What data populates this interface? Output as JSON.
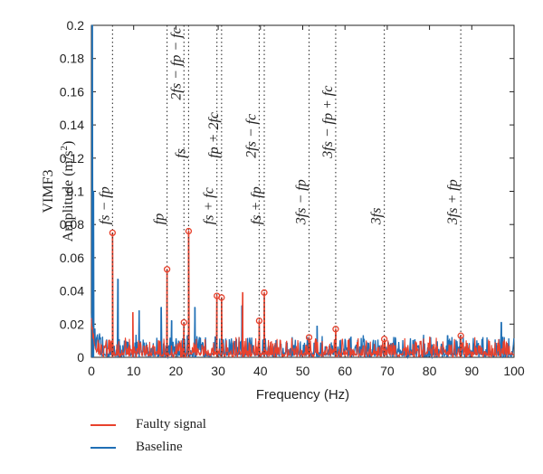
{
  "chart_data": {
    "type": "line",
    "xlabel": "Frequency (Hz)",
    "ylabel_line1": "VIMF3",
    "ylabel_line2": "Amplitude (m/s",
    "ylabel_sup": "2",
    "ylabel_tail": ")",
    "xlim": [
      0,
      100
    ],
    "ylim": [
      0,
      0.2
    ],
    "xticks": [
      "0",
      "10",
      "20",
      "30",
      "40",
      "50",
      "60",
      "70",
      "80",
      "90",
      "100"
    ],
    "yticks": [
      "0",
      "0.02",
      "0.04",
      "0.06",
      "0.08",
      "0.1",
      "0.12",
      "0.14",
      "0.16",
      "0.18",
      "0.2"
    ],
    "grid": false,
    "legend_position": "bottom-left (below plot)",
    "series": [
      {
        "name": "Faulty signal",
        "color": "#e8412c",
        "peaks": [
          {
            "x": 5.0,
            "y": 0.075
          },
          {
            "x": 9.8,
            "y": 0.027
          },
          {
            "x": 17.9,
            "y": 0.053
          },
          {
            "x": 21.9,
            "y": 0.021
          },
          {
            "x": 23.0,
            "y": 0.076
          },
          {
            "x": 29.7,
            "y": 0.037
          },
          {
            "x": 30.8,
            "y": 0.036
          },
          {
            "x": 35.8,
            "y": 0.039
          },
          {
            "x": 39.7,
            "y": 0.022
          },
          {
            "x": 40.9,
            "y": 0.039
          },
          {
            "x": 51.5,
            "y": 0.012
          },
          {
            "x": 57.8,
            "y": 0.017
          },
          {
            "x": 69.3,
            "y": 0.011
          },
          {
            "x": 87.4,
            "y": 0.013
          }
        ]
      },
      {
        "name": "Baseline",
        "color": "#1f6fb5",
        "peaks": [
          {
            "x": 0.2,
            "y": 0.2
          },
          {
            "x": 0.5,
            "y": 0.1
          },
          {
            "x": 6.3,
            "y": 0.047
          },
          {
            "x": 11.3,
            "y": 0.028
          },
          {
            "x": 16.5,
            "y": 0.03
          },
          {
            "x": 19.0,
            "y": 0.022
          },
          {
            "x": 24.5,
            "y": 0.03
          },
          {
            "x": 35.6,
            "y": 0.031
          },
          {
            "x": 53.4,
            "y": 0.019
          },
          {
            "x": 84.3,
            "y": 0.013
          },
          {
            "x": 97.0,
            "y": 0.021
          }
        ]
      }
    ],
    "markers": [
      {
        "x": 5.0,
        "y": 0.075
      },
      {
        "x": 17.9,
        "y": 0.053
      },
      {
        "x": 21.9,
        "y": 0.021
      },
      {
        "x": 23.0,
        "y": 0.076
      },
      {
        "x": 29.7,
        "y": 0.037
      },
      {
        "x": 30.8,
        "y": 0.036
      },
      {
        "x": 39.7,
        "y": 0.022
      },
      {
        "x": 40.9,
        "y": 0.039
      },
      {
        "x": 51.5,
        "y": 0.012
      },
      {
        "x": 57.8,
        "y": 0.017
      },
      {
        "x": 69.3,
        "y": 0.011
      },
      {
        "x": 87.4,
        "y": 0.013
      }
    ],
    "annotations": [
      {
        "x": 5.0,
        "y": 0.08,
        "label": "fs − fp"
      },
      {
        "x": 17.9,
        "y": 0.08,
        "label": "fp"
      },
      {
        "x": 21.9,
        "y": 0.155,
        "label": "2fs − fp − fc"
      },
      {
        "x": 23.0,
        "y": 0.12,
        "label": "fs"
      },
      {
        "x": 29.7,
        "y": 0.08,
        "label": "fs + fc"
      },
      {
        "x": 30.8,
        "y": 0.12,
        "label": "fp + 2fc"
      },
      {
        "x": 39.7,
        "y": 0.12,
        "label": "2fs − fc"
      },
      {
        "x": 40.9,
        "y": 0.08,
        "label": "fs + fp"
      },
      {
        "x": 51.5,
        "y": 0.08,
        "label": "3fs − fp"
      },
      {
        "x": 57.8,
        "y": 0.12,
        "label": "3fs − fp + fc"
      },
      {
        "x": 69.3,
        "y": 0.08,
        "label": "3fs"
      },
      {
        "x": 87.4,
        "y": 0.08,
        "label": "3fs + fp"
      }
    ]
  },
  "legend": {
    "faulty_label": "Faulty signal",
    "baseline_label": "Baseline"
  }
}
